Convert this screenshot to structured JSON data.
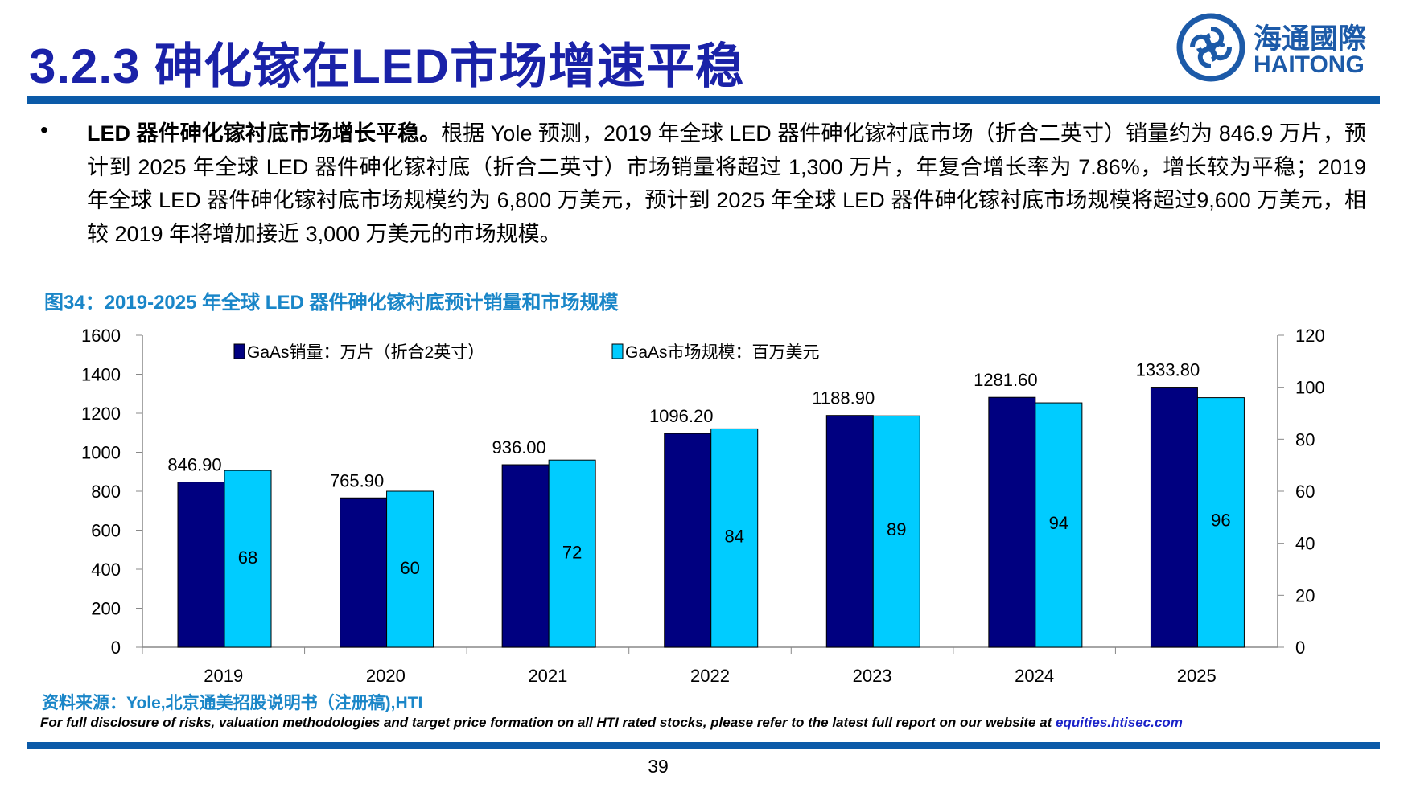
{
  "header": {
    "title": "3.2.3 砷化镓在LED市场增速平稳",
    "logo_cn": "海通國際",
    "logo_en": "HAITONG"
  },
  "body": {
    "bullet": "•",
    "lead": "LED 器件砷化镓衬底市场增长平稳。",
    "text": "根据 Yole 预测，2019 年全球 LED 器件砷化镓衬底市场（折合二英寸）销量约为 846.9 万片，预计到 2025 年全球 LED 器件砷化镓衬底（折合二英寸）市场销量将超过 1,300 万片，年复合增长率为 7.86%，增长较为平稳；2019 年全球 LED 器件砷化镓衬底市场规模约为 6,800 万美元，预计到 2025 年全球 LED 器件砷化镓衬底市场规模将超过9,600 万美元，相较 2019 年将增加接近 3,000 万美元的市场规模。"
  },
  "figure": {
    "caption": "图34：2019-2025 年全球 LED 器件砷化镓衬底预计销量和市场规模"
  },
  "chart_data": {
    "type": "bar",
    "categories": [
      "2019",
      "2020",
      "2021",
      "2022",
      "2023",
      "2024",
      "2025"
    ],
    "series": [
      {
        "name": "GaAs销量：万片（折合2英寸）",
        "axis": "left",
        "color": "#000080",
        "values": [
          846.9,
          765.9,
          936.0,
          1096.2,
          1188.9,
          1281.6,
          1333.8
        ],
        "labels": [
          "846.90",
          "765.90",
          "936.00",
          "1096.20",
          "1188.90",
          "1281.60",
          "1333.80"
        ]
      },
      {
        "name": "GaAs市场规模：百万美元",
        "axis": "right",
        "color": "#00ccff",
        "values": [
          68,
          60,
          72,
          84,
          89,
          94,
          96
        ],
        "labels": [
          "68",
          "60",
          "72",
          "84",
          "89",
          "94",
          "96"
        ]
      }
    ],
    "y_left": {
      "range": [
        0,
        1600
      ],
      "ticks": [
        "0",
        "200",
        "400",
        "600",
        "800",
        "1000",
        "1200",
        "1400",
        "1600"
      ]
    },
    "y_right": {
      "range": [
        0,
        120
      ],
      "ticks": [
        "0",
        "20",
        "40",
        "60",
        "80",
        "100",
        "120"
      ]
    },
    "legend": "top",
    "grid": false
  },
  "footer": {
    "source": "资料来源：Yole,北京通美招股说明书（注册稿),HTI",
    "disclaimer": "For full disclosure of risks, valuation methodologies and target price formation on all HTI rated stocks, please refer to the latest full report on our website at ",
    "link": "equities.htisec.com",
    "page": "39"
  }
}
